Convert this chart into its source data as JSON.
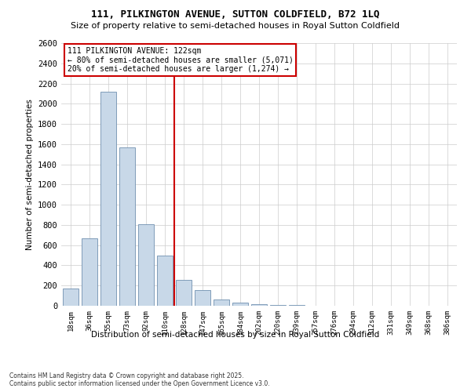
{
  "title1": "111, PILKINGTON AVENUE, SUTTON COLDFIELD, B72 1LQ",
  "title2": "Size of property relative to semi-detached houses in Royal Sutton Coldfield",
  "xlabel": "Distribution of semi-detached houses by size in Royal Sutton Coldfield",
  "ylabel": "Number of semi-detached properties",
  "property_label": "111 PILKINGTON AVENUE: 122sqm",
  "annotation_line1": "← 80% of semi-detached houses are smaller (5,071)",
  "annotation_line2": "20% of semi-detached houses are larger (1,274) →",
  "footer": "Contains HM Land Registry data © Crown copyright and database right 2025.\nContains public sector information licensed under the Open Government Licence v3.0.",
  "categories": [
    "18sqm",
    "36sqm",
    "55sqm",
    "73sqm",
    "92sqm",
    "110sqm",
    "128sqm",
    "147sqm",
    "165sqm",
    "184sqm",
    "202sqm",
    "220sqm",
    "239sqm",
    "257sqm",
    "276sqm",
    "294sqm",
    "312sqm",
    "331sqm",
    "349sqm",
    "368sqm",
    "386sqm"
  ],
  "values": [
    170,
    670,
    2120,
    1570,
    810,
    500,
    260,
    155,
    60,
    30,
    15,
    8,
    5,
    3,
    2,
    2,
    1,
    1,
    1,
    1,
    1
  ],
  "bar_color": "#c8d8e8",
  "bar_edge_color": "#7090b0",
  "red_line_index": 5.5,
  "annotation_box_color": "#cc0000",
  "ylim": [
    0,
    2600
  ],
  "yticks": [
    0,
    200,
    400,
    600,
    800,
    1000,
    1200,
    1400,
    1600,
    1800,
    2000,
    2200,
    2400,
    2600
  ],
  "background_color": "#ffffff",
  "grid_color": "#cccccc"
}
